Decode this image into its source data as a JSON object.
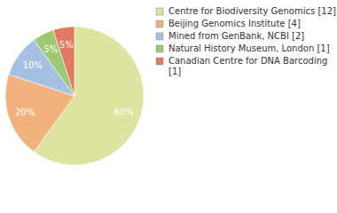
{
  "chart_data": {
    "type": "pie",
    "categories": [
      "Centre for Biodiversity Genomics [12]",
      "Beijing Genomics Institute [4]",
      "Mined from GenBank, NCBI [2]",
      "Natural History Museum, London [1]",
      "Canadian Centre for DNA Barcoding [1]"
    ],
    "values": [
      60,
      20,
      10,
      5,
      5
    ],
    "value_labels": [
      "60%",
      "20%",
      "10%",
      "5%",
      "5%"
    ],
    "colors": [
      "#dde4a0",
      "#f1b17a",
      "#a6c0e3",
      "#9ec872",
      "#e27a62"
    ],
    "data_labels": true,
    "legend": "top-right"
  }
}
